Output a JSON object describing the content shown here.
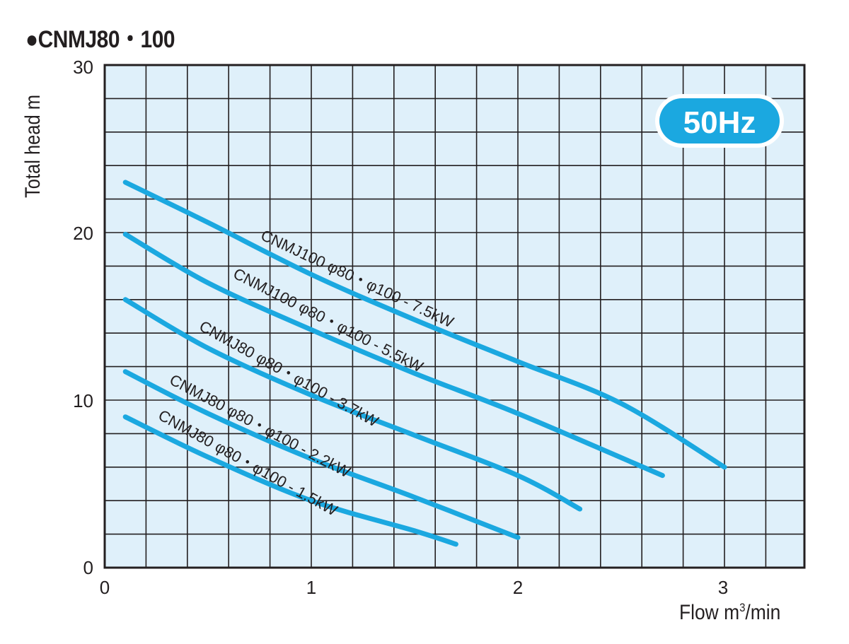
{
  "header": {
    "title": "●CNMJ80・100"
  },
  "badge": {
    "label": "50Hz",
    "color": "#1ba8e0"
  },
  "axes": {
    "ylabel": "Total head  m",
    "xlabel_main": "Flow  m",
    "xlabel_sup": "3",
    "xlabel_tail": "/min",
    "x_ticks": [
      "0",
      "1",
      "2",
      "3"
    ],
    "y_ticks": [
      "0",
      "10",
      "20",
      "30"
    ]
  },
  "colors": {
    "curve": "#1ba8e0",
    "plot_bg": "#dff0fa",
    "grid": "#231f20"
  },
  "curves": [
    {
      "label": "CNMJ100 φ80・φ100 - 7.5kW"
    },
    {
      "label": "CNMJ100 φ80・φ100 - 5.5kW"
    },
    {
      "label": "CNMJ80 φ80・φ100 - 3.7kW"
    },
    {
      "label": "CNMJ80 φ80・φ100 - 2.2kW"
    },
    {
      "label": "CNMJ80 φ80・φ100 - 1.5kW"
    }
  ],
  "chart_data": {
    "type": "line",
    "title": "CNMJ80・100",
    "annotation": "50Hz",
    "xlabel": "Flow m³/min",
    "ylabel": "Total head m",
    "xlim": [
      0,
      3.4
    ],
    "ylim": [
      0,
      30
    ],
    "x_ticks": [
      0,
      1,
      2,
      3
    ],
    "y_ticks": [
      0,
      10,
      20,
      30
    ],
    "grid": true,
    "grid_x_step": 0.2,
    "grid_y_step": 2,
    "series": [
      {
        "name": "CNMJ100 φ80・φ100 - 7.5kW",
        "x": [
          0.1,
          0.5,
          1.0,
          1.5,
          2.0,
          2.5,
          3.0
        ],
        "y": [
          23.0,
          20.6,
          17.5,
          14.8,
          12.3,
          9.8,
          6.0
        ]
      },
      {
        "name": "CNMJ100 φ80・φ100 - 5.5kW",
        "x": [
          0.1,
          0.5,
          1.0,
          1.5,
          2.0,
          2.7
        ],
        "y": [
          19.9,
          17.0,
          14.2,
          11.6,
          9.2,
          5.5
        ]
      },
      {
        "name": "CNMJ80 φ80・φ100 - 3.7kW",
        "x": [
          0.1,
          0.5,
          1.0,
          1.5,
          2.0,
          2.3
        ],
        "y": [
          16.0,
          13.1,
          10.3,
          7.9,
          5.5,
          3.5
        ]
      },
      {
        "name": "CNMJ80 φ80・φ100 - 2.2kW",
        "x": [
          0.1,
          0.5,
          1.0,
          1.5,
          2.0
        ],
        "y": [
          11.7,
          9.2,
          6.5,
          4.2,
          1.8
        ]
      },
      {
        "name": "CNMJ80 φ80・φ100 - 1.5kW",
        "x": [
          0.1,
          0.5,
          1.0,
          1.5,
          1.7
        ],
        "y": [
          9.0,
          6.6,
          4.0,
          2.2,
          1.4
        ]
      }
    ]
  }
}
